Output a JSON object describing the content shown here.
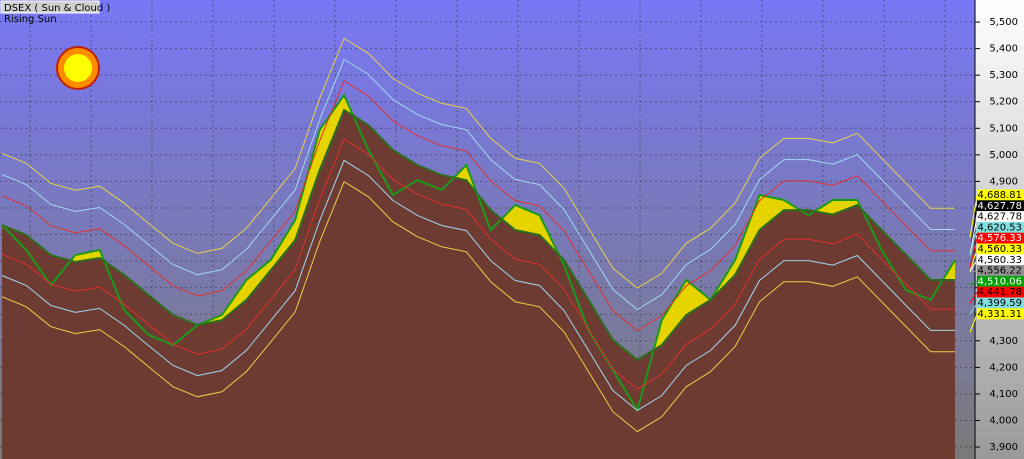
{
  "chart_data": {
    "type": "line",
    "title": "DSEX ( Sun & Cloud )",
    "subtitle": "Rising Sun",
    "ylim": [
      3855,
      5583
    ],
    "yticks": [
      {
        "value": 3900,
        "label": "3,900"
      },
      {
        "value": 4000,
        "label": "4,000"
      },
      {
        "value": 4100,
        "label": "4,100"
      },
      {
        "value": 4200,
        "label": "4,200"
      },
      {
        "value": 4300,
        "label": "4,300"
      },
      {
        "value": 4400,
        "label": "4,400"
      },
      {
        "value": 4500,
        "label": "4,500"
      },
      {
        "value": 4600,
        "label": "4,600"
      },
      {
        "value": 4700,
        "label": "4,700"
      },
      {
        "value": 4800,
        "label": "4,800"
      },
      {
        "value": 4900,
        "label": "4,900"
      },
      {
        "value": 5000,
        "label": "5,000"
      },
      {
        "value": 5100,
        "label": "5,100"
      },
      {
        "value": 5200,
        "label": "5,200"
      },
      {
        "value": 5300,
        "label": "5,300"
      },
      {
        "value": 5400,
        "label": "5,400"
      },
      {
        "value": 5500,
        "label": "5,500"
      }
    ],
    "grid": true,
    "cloud_color": "#e6d400",
    "series": [
      {
        "color": "#1a9a1a",
        "values": [
          4736,
          4642,
          4510,
          4623,
          4642,
          4416,
          4322,
          4284,
          4359,
          4397,
          4529,
          4604,
          4755,
          5094,
          5225,
          5018,
          4849,
          4905,
          4868,
          4962,
          4717,
          4811,
          4773,
          4585,
          4341,
          4190,
          4039,
          4378,
          4529,
          4454,
          4604,
          4849,
          4830,
          4773,
          4830,
          4830,
          4642,
          4491,
          4454,
          4604
        ]
      },
      {
        "color": "#2d6e1e",
        "fill_below": "#6e3b32",
        "values": [
          4736,
          4698,
          4623,
          4597,
          4612,
          4548,
          4472,
          4397,
          4359,
          4378,
          4454,
          4566,
          4679,
          4943,
          5169,
          5112,
          5018,
          4962,
          4924,
          4905,
          4792,
          4717,
          4698,
          4604,
          4454,
          4303,
          4228,
          4284,
          4397,
          4454,
          4548,
          4717,
          4792,
          4792,
          4775,
          4811,
          4717,
          4623,
          4529,
          4529
        ]
      },
      {
        "color": "#e8d24a",
        "values": [
          5006,
          4968,
          4893,
          4867,
          4882,
          4818,
          4742,
          4667,
          4629,
          4648,
          4724,
          4836,
          4949,
          5213,
          5439,
          5382,
          5288,
          5232,
          5194,
          5175,
          5062,
          4987,
          4968,
          4874,
          4724,
          4573,
          4498,
          4554,
          4667,
          4724,
          4818,
          4987,
          5062,
          5062,
          5045,
          5081,
          4987,
          4893,
          4799,
          4799
        ]
      },
      {
        "color": "#9fd8f0",
        "values": [
          4926,
          4888,
          4813,
          4787,
          4802,
          4738,
          4662,
          4587,
          4549,
          4568,
          4644,
          4756,
          4869,
          5133,
          5359,
          5302,
          5208,
          5152,
          5114,
          5095,
          4982,
          4907,
          4888,
          4794,
          4644,
          4493,
          4418,
          4474,
          4587,
          4644,
          4738,
          4907,
          4982,
          4982,
          4965,
          5001,
          4907,
          4813,
          4719,
          4719
        ]
      },
      {
        "color": "#e03030",
        "values": [
          4846,
          4808,
          4733,
          4707,
          4722,
          4658,
          4582,
          4507,
          4469,
          4488,
          4564,
          4676,
          4789,
          5053,
          5279,
          5222,
          5128,
          5072,
          5034,
          5015,
          4902,
          4827,
          4808,
          4714,
          4564,
          4413,
          4338,
          4394,
          4507,
          4564,
          4658,
          4827,
          4902,
          4902,
          4885,
          4921,
          4827,
          4733,
          4639,
          4639
        ]
      },
      {
        "color": "#e03030",
        "values": [
          4626,
          4588,
          4513,
          4487,
          4502,
          4438,
          4362,
          4287,
          4249,
          4268,
          4344,
          4456,
          4569,
          4833,
          5059,
          5002,
          4908,
          4852,
          4814,
          4795,
          4682,
          4607,
          4588,
          4494,
          4344,
          4193,
          4118,
          4174,
          4287,
          4344,
          4438,
          4607,
          4682,
          4682,
          4665,
          4701,
          4607,
          4513,
          4419,
          4419
        ]
      },
      {
        "color": "#9fd8f0",
        "values": [
          4546,
          4508,
          4433,
          4407,
          4422,
          4358,
          4282,
          4207,
          4169,
          4188,
          4264,
          4376,
          4489,
          4753,
          4979,
          4922,
          4828,
          4772,
          4734,
          4715,
          4602,
          4527,
          4508,
          4414,
          4264,
          4113,
          4038,
          4094,
          4207,
          4264,
          4358,
          4527,
          4602,
          4602,
          4585,
          4621,
          4527,
          4433,
          4339,
          4339
        ]
      },
      {
        "color": "#e8d24a",
        "values": [
          4466,
          4428,
          4353,
          4327,
          4342,
          4278,
          4202,
          4127,
          4089,
          4108,
          4184,
          4296,
          4409,
          4673,
          4899,
          4842,
          4748,
          4692,
          4654,
          4635,
          4522,
          4447,
          4428,
          4334,
          4184,
          4033,
          3958,
          4014,
          4127,
          4184,
          4278,
          4447,
          4522,
          4522,
          4505,
          4541,
          4447,
          4353,
          4259,
          4259
        ]
      }
    ],
    "price_tags": [
      {
        "value": 4688.81,
        "label": "4,688.81",
        "color": "#ffff00",
        "text_color": "#000000"
      },
      {
        "value": 4627.78,
        "label": "4,627.78",
        "color": "#000000",
        "text_color": "#ffffff"
      },
      {
        "value": 4627.78,
        "label": "4,627.78",
        "color": "#ffffff",
        "text_color": "#000000"
      },
      {
        "value": 4620.53,
        "label": "4,620.53",
        "color": "#80e0e0",
        "text_color": "#000000"
      },
      {
        "value": 4576.33,
        "label": "4,576.33",
        "color": "#ff0000",
        "text_color": "#ffffff"
      },
      {
        "value": 4560.33,
        "label": "4,560.33",
        "color": "#ffff00",
        "text_color": "#000000"
      },
      {
        "value": 4560.33,
        "label": "4,560.33",
        "color": "#ffffff",
        "text_color": "#000000"
      },
      {
        "value": 4556.22,
        "label": "4,556.22",
        "color": "#909090",
        "text_color": "#000000"
      },
      {
        "value": 4510.06,
        "label": "4,510.06",
        "color": "#00a000",
        "text_color": "#ffffff"
      },
      {
        "value": 4441.78,
        "label": "4,441.78",
        "color": "#ff0000",
        "text_color": "#000000"
      },
      {
        "value": 4399.59,
        "label": "4,399.59",
        "color": "#80e0e0",
        "text_color": "#000000"
      },
      {
        "value": 4331.31,
        "label": "4,331.31",
        "color": "#ffff00",
        "text_color": "#000000"
      }
    ]
  }
}
